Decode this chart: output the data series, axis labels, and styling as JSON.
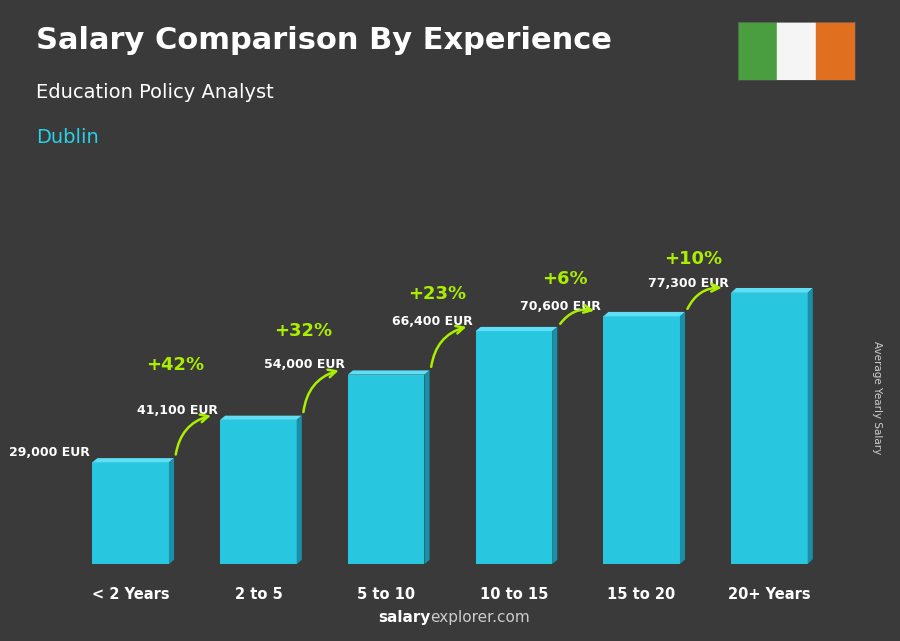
{
  "title": "Salary Comparison By Experience",
  "subtitle": "Education Policy Analyst",
  "city": "Dublin",
  "categories": [
    "< 2 Years",
    "2 to 5",
    "5 to 10",
    "10 to 15",
    "15 to 20",
    "20+ Years"
  ],
  "values": [
    29000,
    41100,
    54000,
    66400,
    70600,
    77300
  ],
  "labels": [
    "29,000 EUR",
    "41,100 EUR",
    "54,000 EUR",
    "66,400 EUR",
    "70,600 EUR",
    "77,300 EUR"
  ],
  "pct_labels": [
    "+42%",
    "+32%",
    "+23%",
    "+6%",
    "+10%"
  ],
  "bar_color_face": "#29c6e0",
  "bar_color_light": "#5de0f5",
  "bar_color_dark": "#1a8fa8",
  "background_color": "#3a3a3a",
  "title_color": "#ffffff",
  "subtitle_color": "#ffffff",
  "city_color": "#29d0e8",
  "label_color": "#ffffff",
  "pct_color": "#aaee00",
  "arrow_color": "#aaee00",
  "footer_salary_color": "#ffffff",
  "footer_explorer_color": "#aaaaaa",
  "ylabel": "Average Yearly Salary",
  "ylim": [
    0,
    95000
  ],
  "flag_green": "#4a9e3f",
  "flag_white": "#f5f5f5",
  "flag_orange": "#e07020"
}
